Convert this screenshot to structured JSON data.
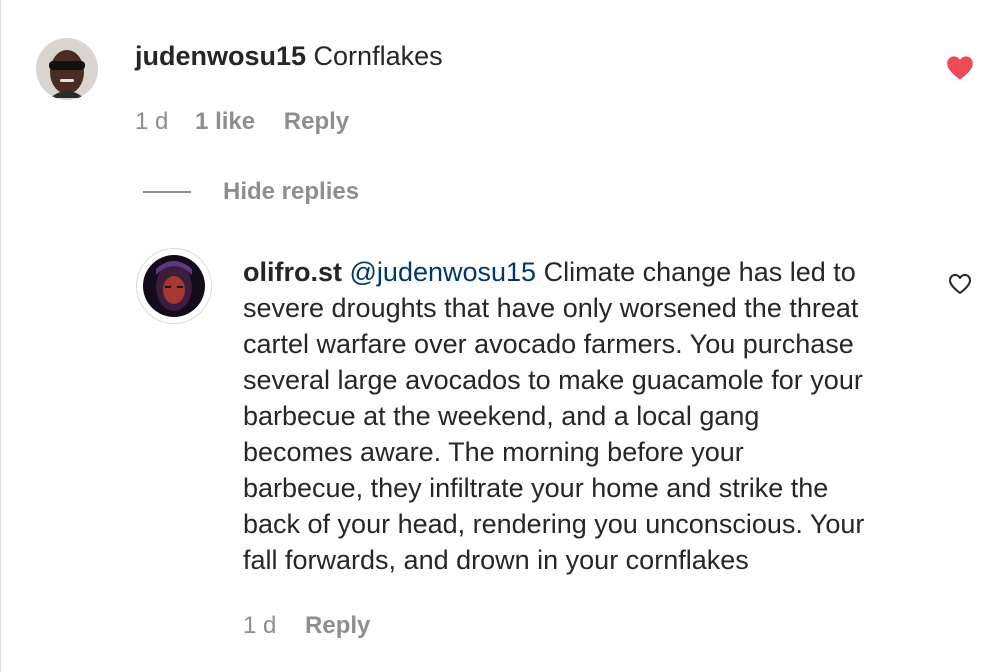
{
  "comment": {
    "username": "judenwosu15",
    "text": "Cornflakes",
    "time": "1 d",
    "likes": "1 like",
    "reply_label": "Reply",
    "liked": true,
    "like_color": "#ed4956"
  },
  "replies_toggle": {
    "label": "Hide replies"
  },
  "reply": {
    "username": "olifro.st",
    "mention": "@judenwosu15",
    "lines": [
      "Climate change has led to",
      "severe droughts that have only worsened the threat",
      "cartel warfare over avocado farmers. You purchase",
      "several large avocados to make guacamole for your",
      "barbecue at the weekend, and a local gang",
      "becomes aware. The morning before your",
      "barbecue, they infiltrate your home and strike the",
      "back of your head, rendering you unconscious. Your",
      "fall forwards, and drown in your cornflakes"
    ],
    "time": "1 d",
    "reply_label": "Reply",
    "liked": false
  },
  "icons": {
    "comment_like": "heart-filled-icon",
    "reply_like": "heart-outline-icon"
  }
}
